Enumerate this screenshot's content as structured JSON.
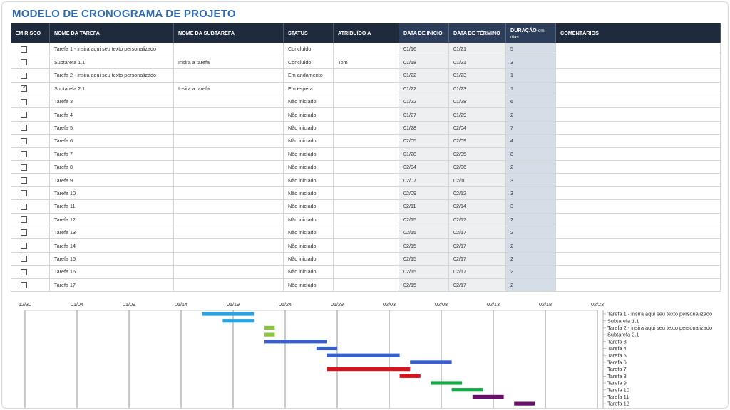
{
  "title": "MODELO DE CRONOGRAMA DE PROJETO",
  "headers": {
    "risk": "EM RISCO",
    "task": "NOME DA TAREFA",
    "subtask": "NOME DA SUBTAREFA",
    "status": "STATUS",
    "assigned": "ATRIBUÍDO A",
    "start": "DATA DE INÍCIO",
    "end": "DATA DE TÉRMINO",
    "duration": "DURAÇÃO",
    "duration_unit": "em dias",
    "comments": "COMENTÁRIOS"
  },
  "rows": [
    {
      "risk": false,
      "task": "Tarefa 1 - insira aqui seu texto personalizado",
      "subtask": "",
      "status": "Concluído",
      "assigned": "",
      "start": "01/16",
      "end": "01/21",
      "duration": "5",
      "comments": ""
    },
    {
      "risk": false,
      "task": "Subtarefa 1.1",
      "subtask": "Insira a tarefa",
      "status": "Concluído",
      "assigned": "Tom",
      "start": "01/18",
      "end": "01/21",
      "duration": "3",
      "comments": ""
    },
    {
      "risk": false,
      "task": "Tarefa 2 - insira aqui seu texto personalizado",
      "subtask": "",
      "status": "Em andamento",
      "assigned": "",
      "start": "01/22",
      "end": "01/23",
      "duration": "1",
      "comments": ""
    },
    {
      "risk": true,
      "task": "Subtarefa 2.1",
      "subtask": "Insira a tarefa",
      "status": "Em espera",
      "assigned": "",
      "start": "01/22",
      "end": "01/23",
      "duration": "1",
      "comments": ""
    },
    {
      "risk": false,
      "task": "Tarefa 3",
      "subtask": "",
      "status": "Não iniciado",
      "assigned": "",
      "start": "01/22",
      "end": "01/28",
      "duration": "6",
      "comments": ""
    },
    {
      "risk": false,
      "task": "Tarefa 4",
      "subtask": "",
      "status": "Não iniciado",
      "assigned": "",
      "start": "01/27",
      "end": "01/29",
      "duration": "2",
      "comments": ""
    },
    {
      "risk": false,
      "task": "Tarefa 5",
      "subtask": "",
      "status": "Não iniciado",
      "assigned": "",
      "start": "01/28",
      "end": "02/04",
      "duration": "7",
      "comments": ""
    },
    {
      "risk": false,
      "task": "Tarefa 6",
      "subtask": "",
      "status": "Não iniciado",
      "assigned": "",
      "start": "02/05",
      "end": "02/09",
      "duration": "4",
      "comments": ""
    },
    {
      "risk": false,
      "task": "Tarefa 7",
      "subtask": "",
      "status": "Não iniciado",
      "assigned": "",
      "start": "01/28",
      "end": "02/05",
      "duration": "8",
      "comments": ""
    },
    {
      "risk": false,
      "task": "Tarefa 8",
      "subtask": "",
      "status": "Não iniciado",
      "assigned": "",
      "start": "02/04",
      "end": "02/06",
      "duration": "2",
      "comments": ""
    },
    {
      "risk": false,
      "task": "Tarefa 9",
      "subtask": "",
      "status": "Não iniciado",
      "assigned": "",
      "start": "02/07",
      "end": "02/10",
      "duration": "3",
      "comments": ""
    },
    {
      "risk": false,
      "task": "Tarefa 10",
      "subtask": "",
      "status": "Não iniciado",
      "assigned": "",
      "start": "02/09",
      "end": "02/12",
      "duration": "3",
      "comments": ""
    },
    {
      "risk": false,
      "task": "Tarefa 11",
      "subtask": "",
      "status": "Não iniciado",
      "assigned": "",
      "start": "02/11",
      "end": "02/14",
      "duration": "3",
      "comments": ""
    },
    {
      "risk": false,
      "task": "Tarefa 12",
      "subtask": "",
      "status": "Não iniciado",
      "assigned": "",
      "start": "02/15",
      "end": "02/17",
      "duration": "2",
      "comments": ""
    },
    {
      "risk": false,
      "task": "Tarefa 13",
      "subtask": "",
      "status": "Não iniciado",
      "assigned": "",
      "start": "02/15",
      "end": "02/17",
      "duration": "2",
      "comments": ""
    },
    {
      "risk": false,
      "task": "Tarefa 14",
      "subtask": "",
      "status": "Não iniciado",
      "assigned": "",
      "start": "02/15",
      "end": "02/17",
      "duration": "2",
      "comments": ""
    },
    {
      "risk": false,
      "task": "Tarefa 15",
      "subtask": "",
      "status": "Não iniciado",
      "assigned": "",
      "start": "02/15",
      "end": "02/17",
      "duration": "2",
      "comments": ""
    },
    {
      "risk": false,
      "task": "Tarefa 16",
      "subtask": "",
      "status": "Não iniciado",
      "assigned": "",
      "start": "02/15",
      "end": "02/17",
      "duration": "2",
      "comments": ""
    },
    {
      "risk": false,
      "task": "Tarefa 17",
      "subtask": "",
      "status": "Não iniciado",
      "assigned": "",
      "start": "02/15",
      "end": "02/17",
      "duration": "2",
      "comments": ""
    }
  ],
  "chart_data": {
    "type": "bar",
    "orientation": "horizontal",
    "x_ticks": [
      "12/30",
      "01/04",
      "01/09",
      "01/14",
      "01/19",
      "01/24",
      "01/29",
      "02/03",
      "02/08",
      "02/13",
      "02/18",
      "02/23"
    ],
    "x_range": [
      "12/30",
      "02/23"
    ],
    "grid": true,
    "legend": "none",
    "categories": [
      "Tarefa 1 - insira aqui seu texto personalizado",
      "Subtarefa 1.1",
      "Tarefa 2 - insira aqui seu texto personalizado",
      "Subtarefa 2.1",
      "Tarefa 3",
      "Tarefa 4",
      "Tarefa 5",
      "Tarefa 6",
      "Tarefa 7",
      "Tarefa 8",
      "Tarefa 9",
      "Tarefa 10",
      "Tarefa 11",
      "Tarefa 12"
    ],
    "bars": [
      {
        "start": "01/16",
        "end": "01/21",
        "color": "#29a3e0"
      },
      {
        "start": "01/18",
        "end": "01/21",
        "color": "#29a3e0"
      },
      {
        "start": "01/22",
        "end": "01/23",
        "color": "#8cc63f"
      },
      {
        "start": "01/22",
        "end": "01/23",
        "color": "#8cc63f"
      },
      {
        "start": "01/22",
        "end": "01/28",
        "color": "#3a5fcd"
      },
      {
        "start": "01/27",
        "end": "01/29",
        "color": "#3a5fcd"
      },
      {
        "start": "01/28",
        "end": "02/04",
        "color": "#3a5fcd"
      },
      {
        "start": "02/05",
        "end": "02/09",
        "color": "#3a5fcd"
      },
      {
        "start": "01/28",
        "end": "02/05",
        "color": "#d9141b"
      },
      {
        "start": "02/04",
        "end": "02/06",
        "color": "#d9141b"
      },
      {
        "start": "02/07",
        "end": "02/10",
        "color": "#1aa64a"
      },
      {
        "start": "02/09",
        "end": "02/12",
        "color": "#1aa64a"
      },
      {
        "start": "02/11",
        "end": "02/14",
        "color": "#6a0f6e"
      },
      {
        "start": "02/15",
        "end": "02/17",
        "color": "#6a0f6e"
      }
    ]
  }
}
